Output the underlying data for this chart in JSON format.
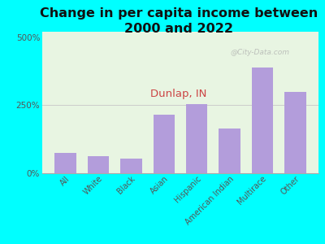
{
  "title": "Change in per capita income between\n2000 and 2022",
  "subtitle": "Dunlap, IN",
  "categories": [
    "All",
    "White",
    "Black",
    "Asian",
    "Hispanic",
    "American Indian",
    "Multirace",
    "Other"
  ],
  "values": [
    75,
    62,
    55,
    215,
    255,
    165,
    390,
    300
  ],
  "bar_color": "#b39ddb",
  "background_color": "#00ffff",
  "plot_bg_color": "#e8f5e2",
  "ylabel_ticks": [
    "0%",
    "250%",
    "500%"
  ],
  "yticks": [
    0,
    250,
    500
  ],
  "ylim": [
    0,
    520
  ],
  "watermark": "@City-Data.com",
  "title_fontsize": 11.5,
  "subtitle_fontsize": 9.5,
  "subtitle_color": "#cc4444",
  "ytick_color": "#555555",
  "xtick_color": "#555555"
}
